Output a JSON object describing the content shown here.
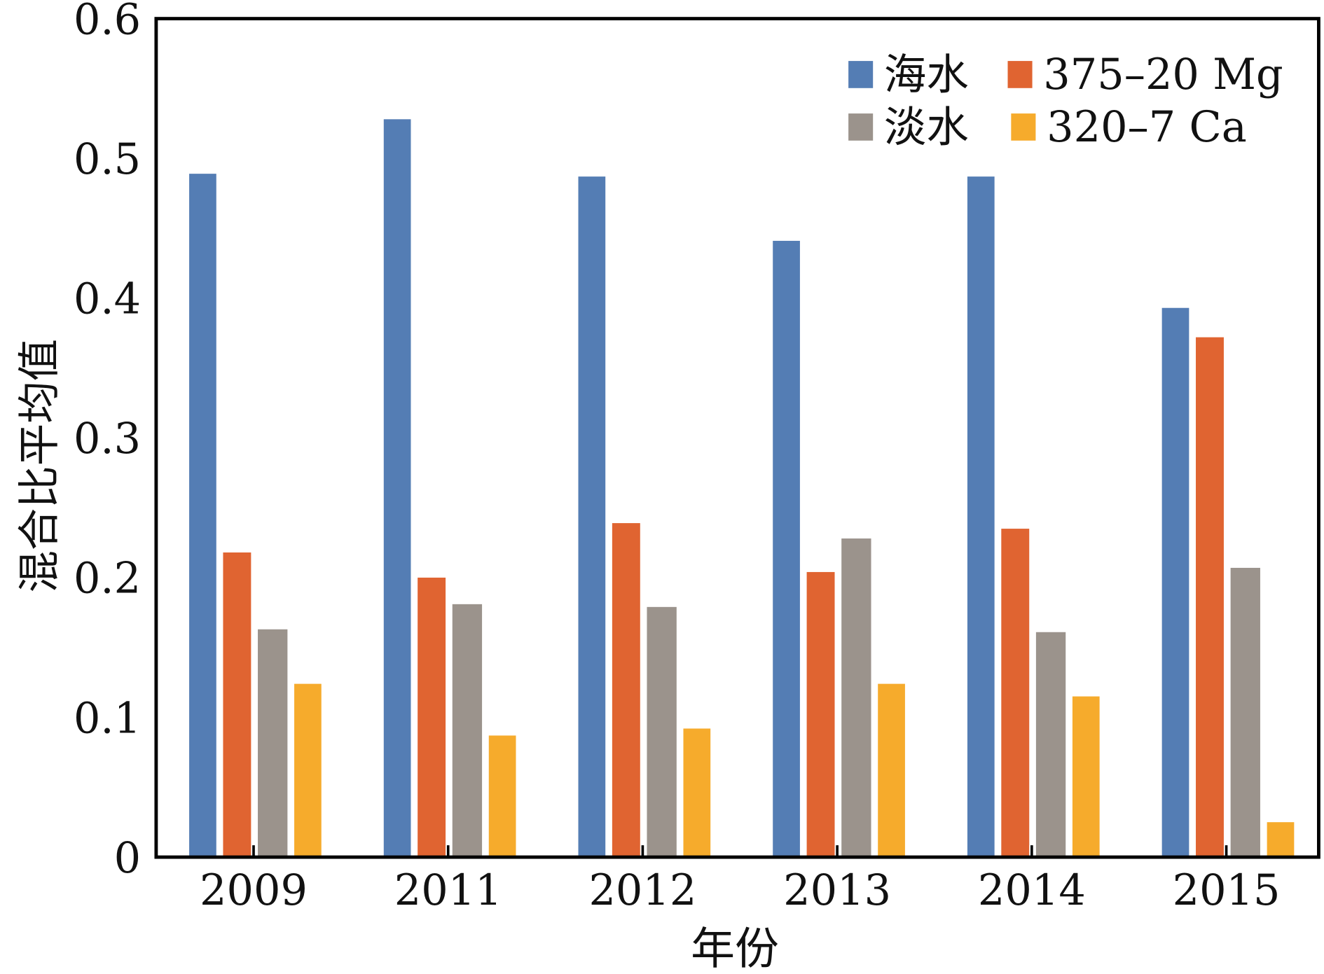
{
  "chart_data": {
    "type": "bar",
    "title": "",
    "xlabel": "年份",
    "ylabel": "混合比平均值",
    "ylim": [
      0,
      0.6
    ],
    "yticks": [
      "0",
      "0.1",
      "0.2",
      "0.3",
      "0.4",
      "0.5",
      "0.6"
    ],
    "categories": [
      "2009",
      "2011",
      "2012",
      "2013",
      "2014",
      "2015"
    ],
    "legend_position": "top-right",
    "grid": false,
    "series": [
      {
        "name": "海水",
        "color": "#547db4",
        "values": [
          0.489,
          0.528,
          0.487,
          0.441,
          0.487,
          0.393
        ]
      },
      {
        "name": "375–20 Mg",
        "color": "#e06431",
        "values": [
          0.218,
          0.2,
          0.239,
          0.204,
          0.235,
          0.372
        ]
      },
      {
        "name": "淡水",
        "color": "#9b938c",
        "values": [
          0.163,
          0.181,
          0.179,
          0.228,
          0.161,
          0.207
        ]
      },
      {
        "name": "320–7 Ca",
        "color": "#f6ab2c",
        "values": [
          0.124,
          0.087,
          0.092,
          0.124,
          0.115,
          0.025
        ]
      }
    ]
  }
}
